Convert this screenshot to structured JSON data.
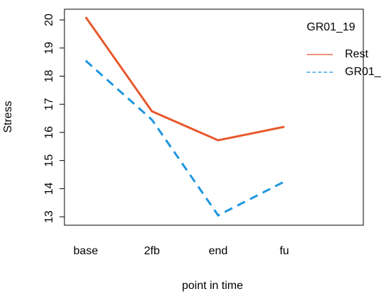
{
  "chart_data": {
    "type": "line",
    "x_label": "point in time",
    "y_label": "Stress",
    "categories": [
      "base",
      "2fb",
      "end",
      "fu"
    ],
    "ylim": [
      12.7,
      20.38
    ],
    "yticks": [
      13,
      14,
      15,
      16,
      17,
      18,
      19,
      20
    ],
    "legend_title": "GR01_19",
    "legend_position": "top-right",
    "series": [
      {
        "name": "Rest",
        "color": "#e8582c",
        "dash": "solid",
        "values": [
          20.1,
          16.75,
          15.72,
          16.2
        ]
      },
      {
        "name": "GR01_",
        "color": "#1f96e0",
        "dash": "dashed",
        "values": [
          18.55,
          16.45,
          13.05,
          14.25
        ]
      }
    ]
  }
}
